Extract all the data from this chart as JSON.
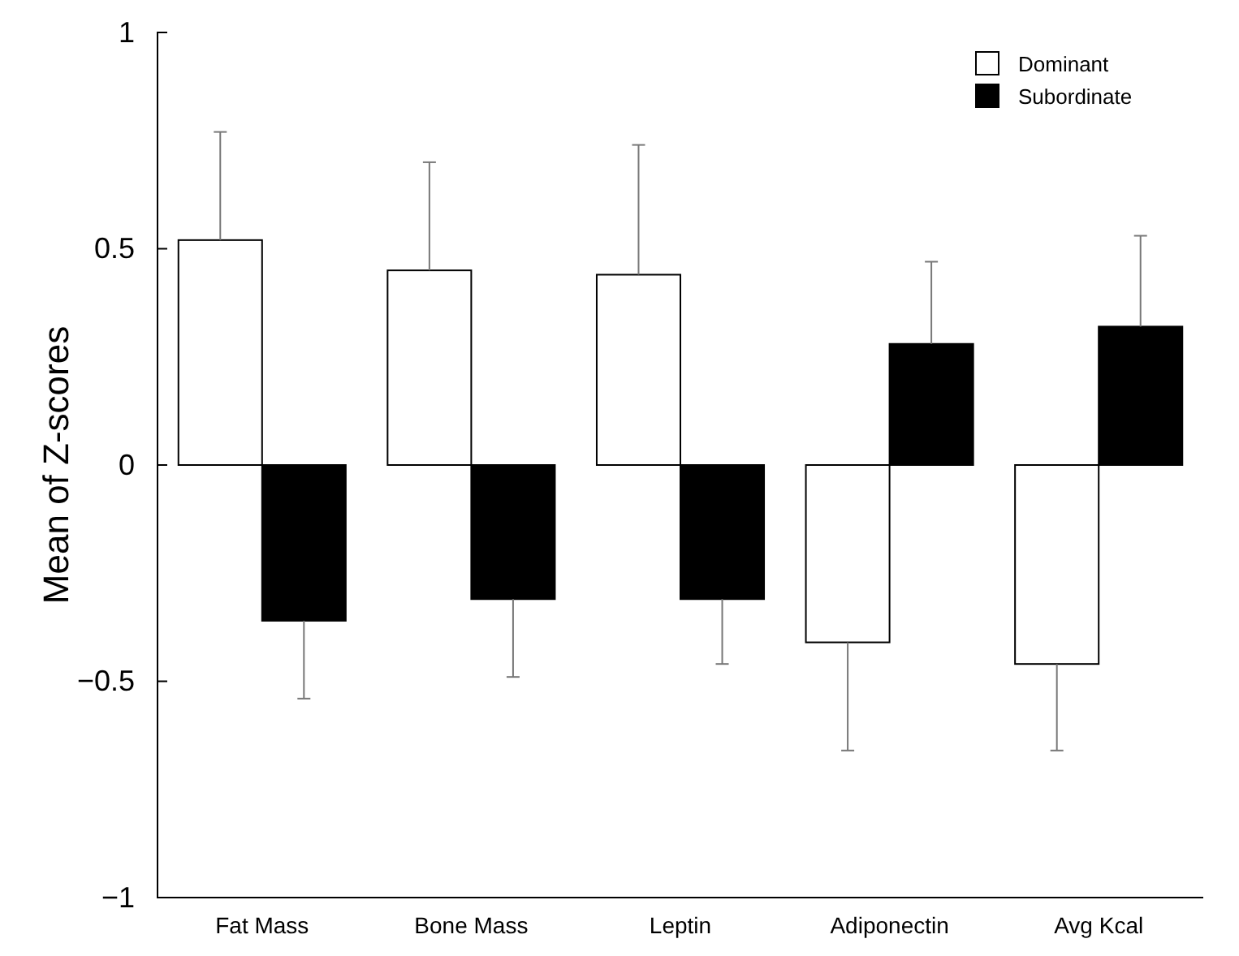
{
  "chart_data": {
    "type": "bar",
    "ylabel": "Mean of Z-scores",
    "categories": [
      "Fat Mass",
      "Bone Mass",
      "Leptin",
      "Adiponectin",
      "Avg Kcal"
    ],
    "series": [
      {
        "name": "Dominant",
        "color": "#ffffff",
        "values": [
          0.52,
          0.45,
          0.44,
          -0.41,
          -0.46
        ],
        "errors": [
          [
            0.52,
            0.77
          ],
          [
            0.45,
            0.7
          ],
          [
            0.44,
            0.74
          ],
          [
            -0.66,
            -0.41
          ],
          [
            -0.66,
            -0.46
          ]
        ]
      },
      {
        "name": "Subordinate",
        "color": "#000000",
        "values": [
          -0.36,
          -0.31,
          -0.31,
          0.28,
          0.32
        ],
        "errors": [
          [
            -0.54,
            -0.36
          ],
          [
            -0.49,
            -0.31
          ],
          [
            -0.46,
            -0.31
          ],
          [
            0.28,
            0.47
          ],
          [
            0.32,
            0.53
          ]
        ]
      }
    ],
    "ylim": [
      -1,
      1
    ],
    "yticks": [
      -1,
      -0.5,
      0,
      0.5,
      1
    ],
    "legend": "top right",
    "grid": false
  }
}
